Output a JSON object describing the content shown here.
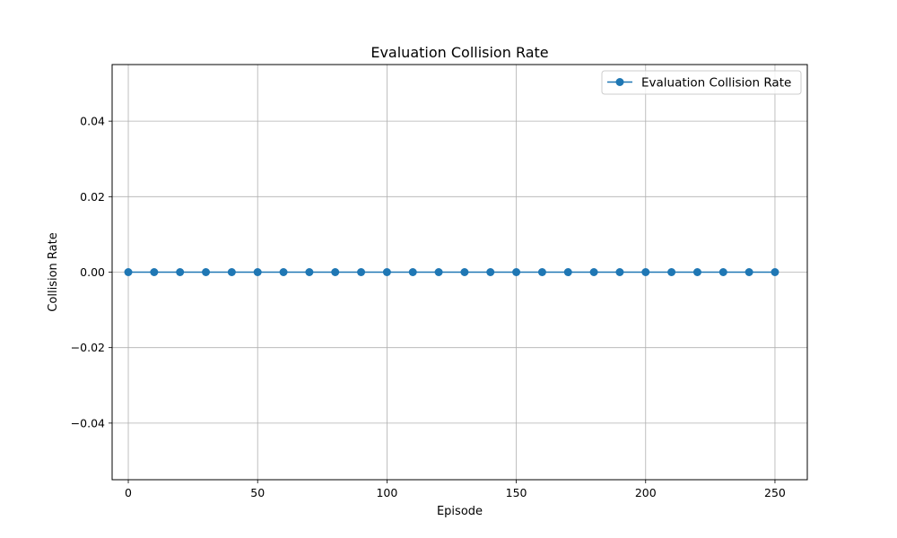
{
  "chart_data": {
    "type": "line",
    "title": "Evaluation Collision Rate",
    "xlabel": "Episode",
    "ylabel": "Collision Rate",
    "xlim": [
      -6.25,
      262.5
    ],
    "ylim": [
      -0.055,
      0.055
    ],
    "x_ticks": [
      0,
      50,
      100,
      150,
      200,
      250
    ],
    "y_ticks": [
      -0.04,
      -0.02,
      0.0,
      0.02,
      0.04
    ],
    "y_tick_labels": [
      "−0.04",
      "−0.02",
      "0.00",
      "0.02",
      "0.04"
    ],
    "grid": true,
    "legend_position": "top-right",
    "series": [
      {
        "name": "Evaluation Collision Rate",
        "color": "#1f77b4",
        "marker": "circle",
        "x": [
          0,
          10,
          20,
          30,
          40,
          50,
          60,
          70,
          80,
          90,
          100,
          110,
          120,
          130,
          140,
          150,
          160,
          170,
          180,
          190,
          200,
          210,
          220,
          230,
          240,
          250
        ],
        "y": [
          0,
          0,
          0,
          0,
          0,
          0,
          0,
          0,
          0,
          0,
          0,
          0,
          0,
          0,
          0,
          0,
          0,
          0,
          0,
          0,
          0,
          0,
          0,
          0,
          0,
          0
        ]
      }
    ]
  }
}
